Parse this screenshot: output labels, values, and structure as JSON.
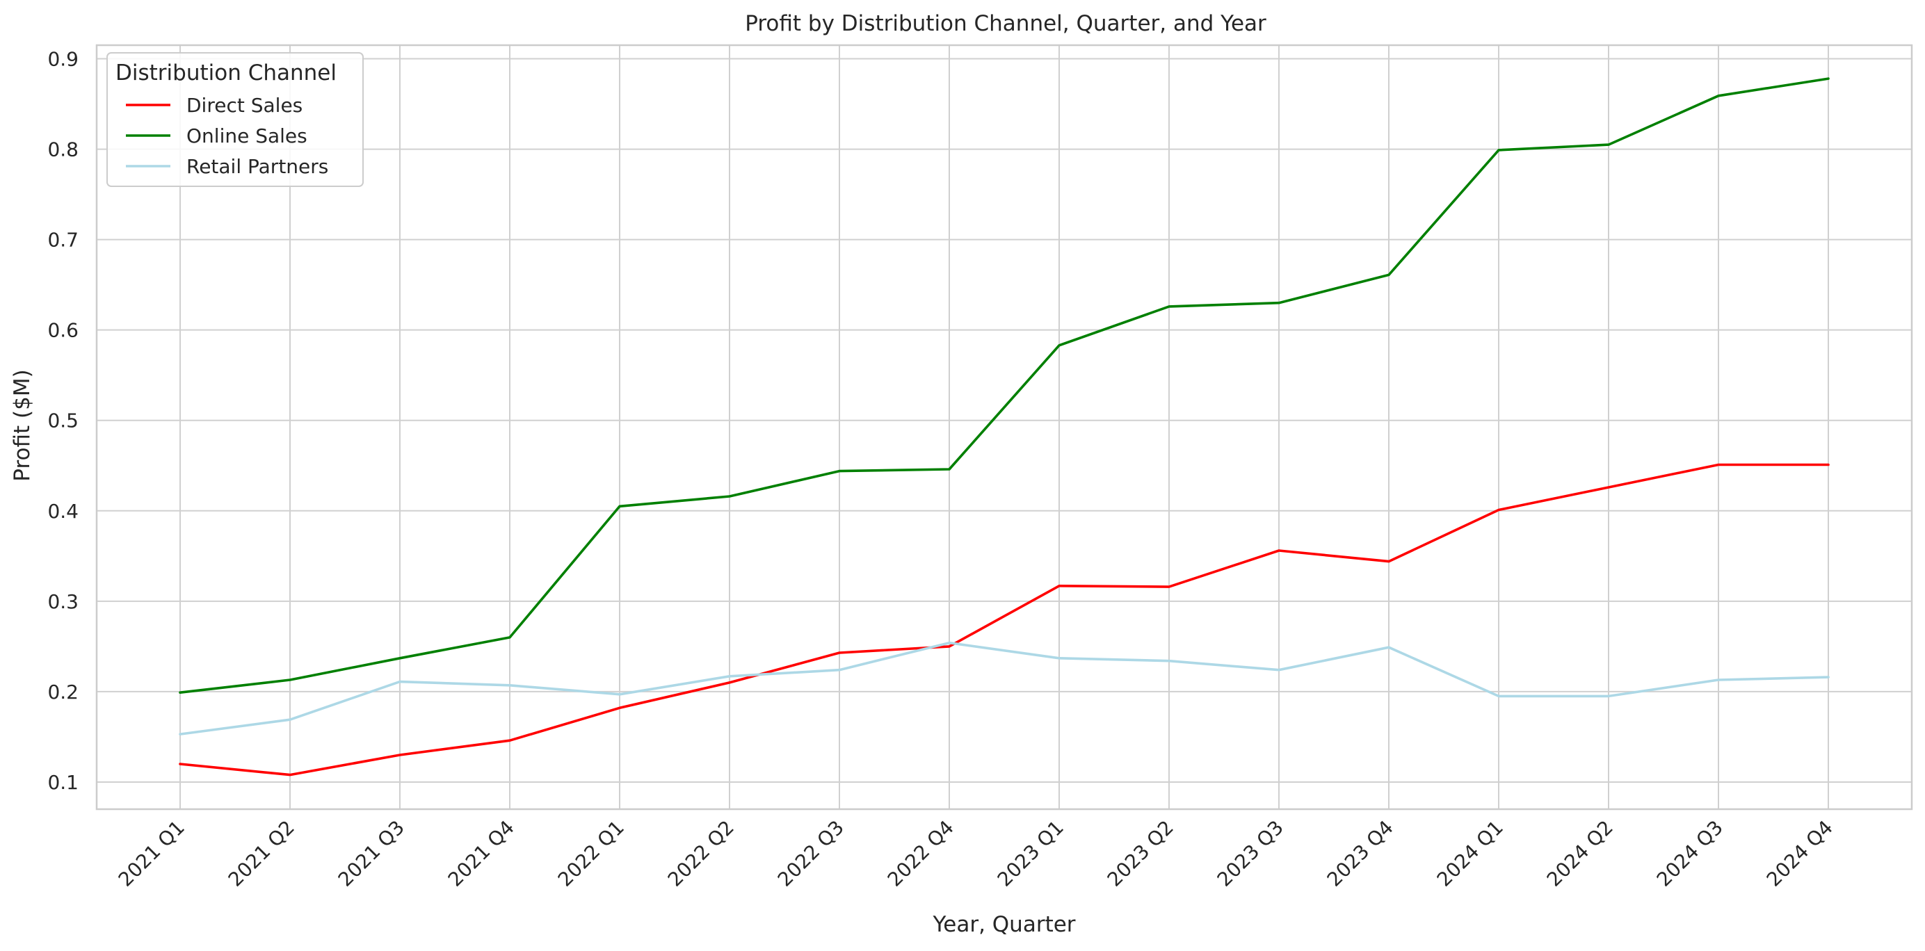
{
  "chart_data": {
    "type": "line",
    "title": "Profit by Distribution Channel, Quarter, and Year",
    "xlabel": "Year, Quarter",
    "ylabel": "Profit ($M)",
    "categories": [
      "2021 Q1",
      "2021 Q2",
      "2021 Q3",
      "2021 Q4",
      "2022 Q1",
      "2022 Q2",
      "2022 Q3",
      "2022 Q4",
      "2023 Q1",
      "2023 Q2",
      "2023 Q3",
      "2023 Q4",
      "2024 Q1",
      "2024 Q2",
      "2024 Q3",
      "2024 Q4"
    ],
    "ylim": [
      0.07,
      0.915
    ],
    "yticks": [
      0.1,
      0.2,
      0.3,
      0.4,
      0.5,
      0.6,
      0.7,
      0.8,
      0.9
    ],
    "ytick_labels": [
      "0.1",
      "0.2",
      "0.3",
      "0.4",
      "0.5",
      "0.6",
      "0.7",
      "0.8",
      "0.9"
    ],
    "grid": true,
    "legend": {
      "title": "Distribution Channel",
      "placement": "top-left"
    },
    "series": [
      {
        "name": "Direct Sales",
        "color": "#ff0000",
        "values": [
          0.12,
          0.108,
          0.13,
          0.146,
          0.182,
          0.21,
          0.243,
          0.25,
          0.317,
          0.316,
          0.356,
          0.344,
          0.401,
          0.426,
          0.451,
          0.451
        ]
      },
      {
        "name": "Online Sales",
        "color": "#008000",
        "values": [
          0.199,
          0.213,
          0.237,
          0.26,
          0.405,
          0.416,
          0.444,
          0.446,
          0.583,
          0.626,
          0.63,
          0.661,
          0.799,
          0.805,
          0.859,
          0.878
        ]
      },
      {
        "name": "Retail Partners",
        "color": "#add8e6",
        "values": [
          0.153,
          0.169,
          0.211,
          0.207,
          0.197,
          0.217,
          0.224,
          0.254,
          0.237,
          0.234,
          0.224,
          0.249,
          0.195,
          0.195,
          0.213,
          0.216
        ]
      }
    ]
  }
}
